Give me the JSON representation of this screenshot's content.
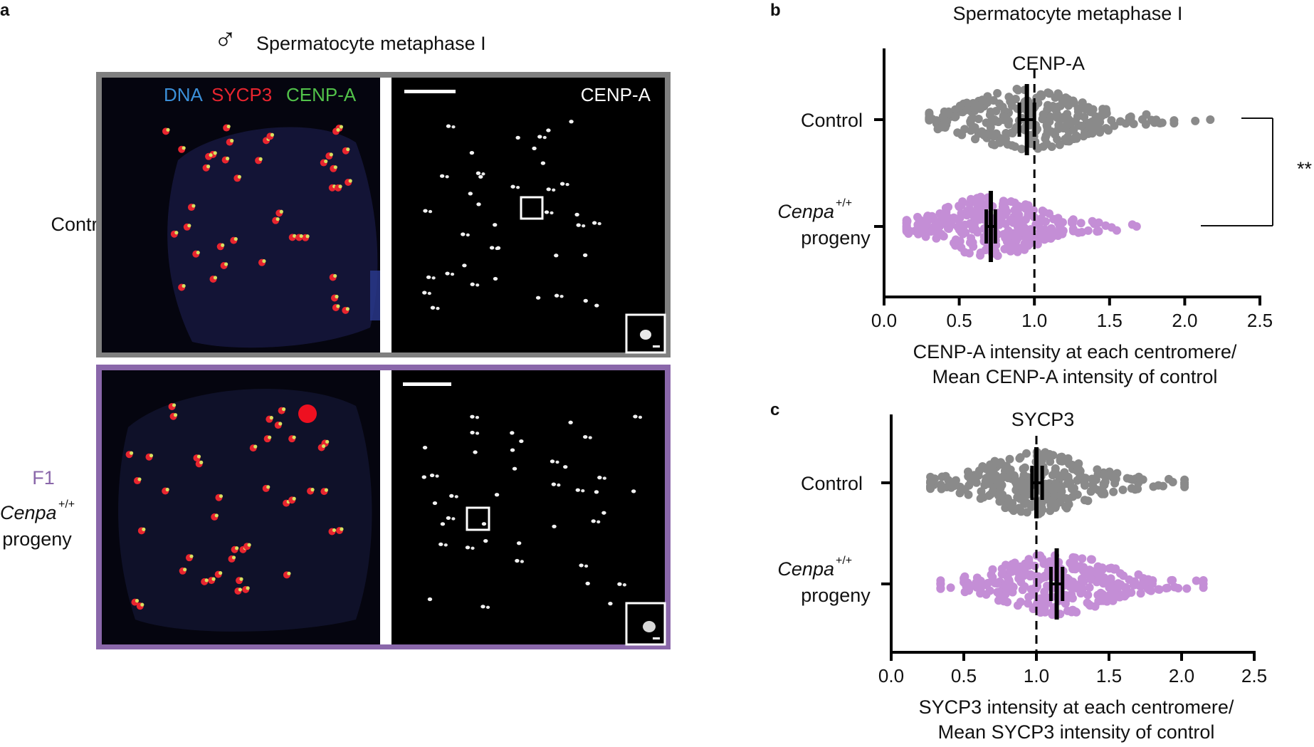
{
  "colors": {
    "control": "#8a8a8a",
    "progeny": "#c48ed6",
    "control_frame": "#808080",
    "progeny_frame": "#8a67aa",
    "dna": "#3b8fd8",
    "sycp3": "#e8252f",
    "cenpa": "#52c24a",
    "f1_label": "#8a67aa"
  },
  "panel_a": {
    "letter": "a",
    "male_symbol": "♂",
    "title": "Spermatocyte metaphase I",
    "row_labels": {
      "control": "Control",
      "f1": "F1",
      "cenpa": "Cenpa",
      "cenpa_sup": "+/+",
      "progeny": "progeny"
    },
    "merge_legend": {
      "dna": "DNA",
      "sycp3": "SYCP3",
      "cenpa": "CENP-A"
    },
    "single_channel_label": "CENP-A"
  },
  "panel_b": {
    "letter": "b",
    "title": "Spermatocyte metaphase I",
    "significance": "**"
  },
  "panel_c": {
    "letter": "c"
  },
  "chart_data": [
    {
      "type": "scatter",
      "subtype": "beeswarm",
      "title": "CENP-A",
      "categories": [
        "Control",
        "Cenpa+/+ progeny"
      ],
      "series": [
        {
          "name": "Control",
          "mean": 0.95,
          "ci": [
            0.9,
            1.0
          ],
          "range": [
            0.3,
            2.17
          ]
        },
        {
          "name": "Cenpa+/+ progeny",
          "mean": 0.71,
          "ci": [
            0.68,
            0.74
          ],
          "range": [
            0.15,
            1.68
          ]
        }
      ],
      "reference_line": 1.0,
      "xlabel": "CENP-A intensity at each centromere/ Mean CENP-A intensity of control",
      "xlabel_lines": [
        "CENP-A intensity at each centromere/",
        "Mean CENP-A intensity of control"
      ],
      "xlim": [
        0.0,
        2.5
      ],
      "xticks": [
        "0.0",
        "0.5",
        "1.0",
        "1.5",
        "2.0",
        "2.5"
      ],
      "significance": "**"
    },
    {
      "type": "scatter",
      "subtype": "beeswarm",
      "title": "SYCP3",
      "categories": [
        "Control",
        "Cenpa+/+ progeny"
      ],
      "series": [
        {
          "name": "Control",
          "mean": 1.0,
          "ci": [
            0.97,
            1.04
          ],
          "range": [
            0.27,
            2.02
          ]
        },
        {
          "name": "Cenpa+/+ progeny",
          "mean": 1.14,
          "ci": [
            1.1,
            1.18
          ],
          "range": [
            0.34,
            2.15
          ]
        }
      ],
      "reference_line": 1.0,
      "xlabel": "SYCP3 intensity at each centromere/ Mean SYCP3 intensity of control",
      "xlabel_lines": [
        "SYCP3 intensity at each centromere/",
        "Mean SYCP3 intensity of control"
      ],
      "xlim": [
        0.0,
        2.5
      ],
      "xticks": [
        "0.0",
        "0.5",
        "1.0",
        "1.5",
        "2.0",
        "2.5"
      ]
    }
  ]
}
